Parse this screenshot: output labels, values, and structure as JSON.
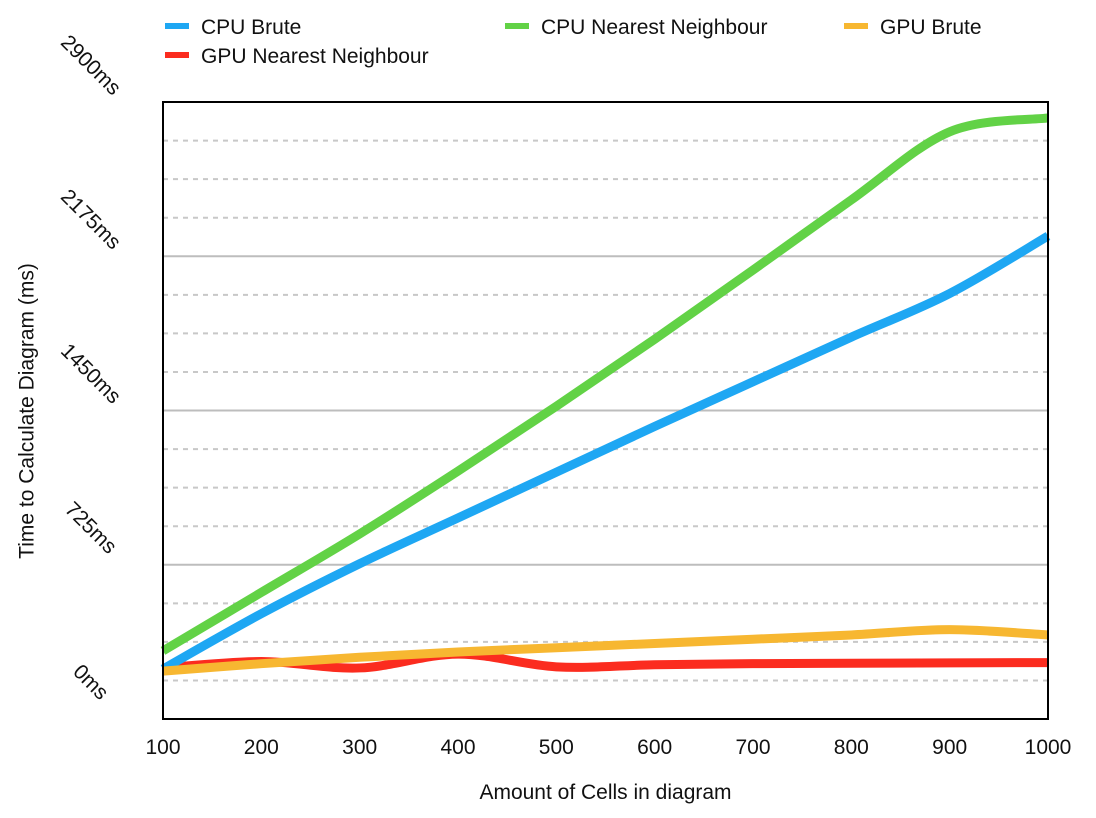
{
  "chart_data": {
    "type": "line",
    "title": "",
    "xlabel": "Amount of Cells in diagram",
    "ylabel": "Time to Calculate Diagram (ms)",
    "xlim": [
      100,
      1000
    ],
    "ylim": [
      0,
      2900
    ],
    "x_ticks": [
      100,
      200,
      300,
      400,
      500,
      600,
      700,
      800,
      900,
      1000
    ],
    "x_tick_labels": [
      "100",
      "200",
      "300",
      "400",
      "500",
      "600",
      "700",
      "800",
      "900",
      "1000"
    ],
    "y_ticks": [
      0,
      725,
      1450,
      2175,
      2900
    ],
    "y_tick_labels": [
      "0ms",
      "725ms",
      "1450ms",
      "2175ms",
      "2900ms"
    ],
    "grid": "horizontal",
    "legend_position": "top",
    "series": [
      {
        "name": "CPU Brute",
        "color": "#1ea7f3",
        "x": [
          100,
          200,
          300,
          400,
          500,
          600,
          700,
          800,
          900,
          1000
        ],
        "y": [
          235,
          495,
          730,
          945,
          1160,
          1375,
          1585,
          1795,
          2000,
          2270
        ]
      },
      {
        "name": "CPU Nearest Neighbour",
        "color": "#62d246",
        "x": [
          100,
          200,
          300,
          400,
          500,
          600,
          700,
          800,
          900,
          1000
        ],
        "y": [
          320,
          595,
          870,
          1165,
          1470,
          1785,
          2110,
          2440,
          2760,
          2825
        ]
      },
      {
        "name": "GPU Nearest Neighbour",
        "color": "#fb2c1f",
        "x": [
          100,
          200,
          300,
          400,
          500,
          600,
          700,
          800,
          900,
          1000
        ],
        "y": [
          240,
          270,
          240,
          305,
          245,
          255,
          260,
          262,
          264,
          265
        ]
      },
      {
        "name": "GPU Brute",
        "color": "#f7b731",
        "x": [
          100,
          200,
          300,
          400,
          500,
          600,
          700,
          800,
          900,
          1000
        ],
        "y": [
          225,
          260,
          290,
          315,
          335,
          355,
          375,
          395,
          420,
          395
        ]
      }
    ]
  }
}
